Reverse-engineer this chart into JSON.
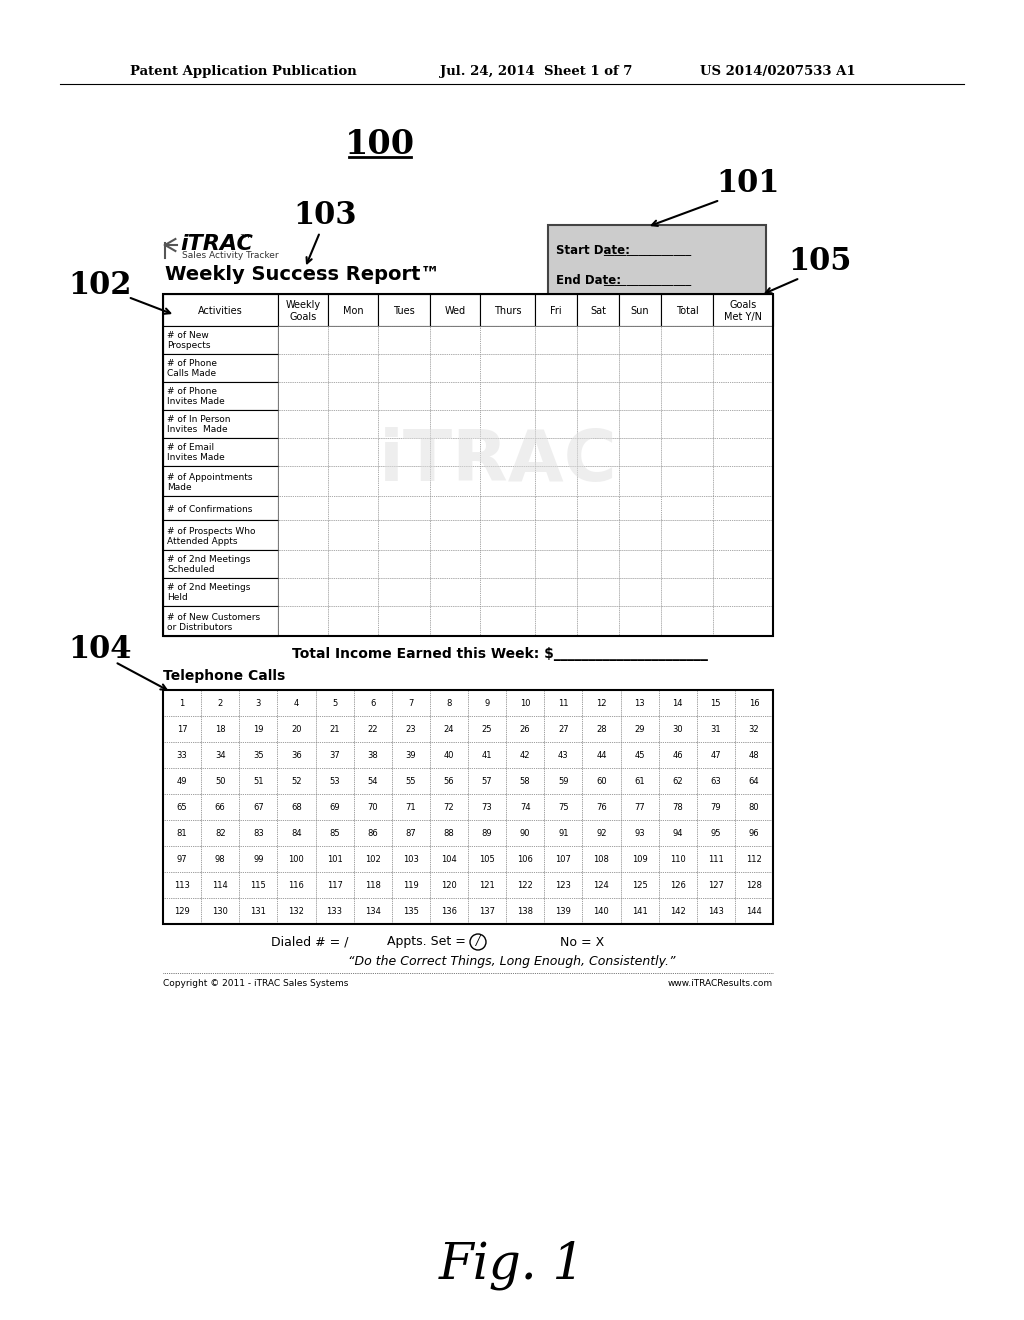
{
  "patent_header_left": "Patent Application Publication",
  "patent_header_mid": "Jul. 24, 2014  Sheet 1 of 7",
  "patent_header_right": "US 2014/0207533 A1",
  "main_label": "100",
  "label_101": "101",
  "label_102": "102",
  "label_103": "103",
  "label_104": "104",
  "label_105": "105",
  "itrac_title": "iTRAC",
  "itrac_tm": "™",
  "itrac_subtitle": "Sales Activity Tracker",
  "report_title": "Weekly Success Report™",
  "start_date_label": "Start Date:",
  "start_date_line": "_______________",
  "end_date_label": "End Date:",
  "end_date_line": "_______________",
  "table_headers": [
    "Activities",
    "Weekly\nGoals",
    "Mon",
    "Tues",
    "Wed",
    "Thurs",
    "Fri",
    "Sat",
    "Sun",
    "Total",
    "Goals\nMet Y/N"
  ],
  "activities": [
    "# of New\nProspects",
    "# of Phone\nCalls Made",
    "# of Phone\nInvites Made",
    "# of In Person\nInvites  Made",
    "# of Email\nInvites Made",
    "# of Appointments\nMade",
    "# of Confirmations",
    "# of Prospects Who\nAttended Appts",
    "# of 2nd Meetings\nScheduled",
    "# of 2nd Meetings\nHeld",
    "# of New Customers\nor Distributors"
  ],
  "total_income_text": "Total Income Earned this Week: $",
  "telephone_calls_label": "Telephone Calls",
  "phone_numbers": [
    [
      1,
      2,
      3,
      4,
      5,
      6,
      7,
      8,
      9,
      10,
      11,
      12,
      13,
      14,
      15,
      16
    ],
    [
      17,
      18,
      19,
      20,
      21,
      22,
      23,
      24,
      25,
      26,
      27,
      28,
      29,
      30,
      31,
      32
    ],
    [
      33,
      34,
      35,
      36,
      37,
      38,
      39,
      40,
      41,
      42,
      43,
      44,
      45,
      46,
      47,
      48
    ],
    [
      49,
      50,
      51,
      52,
      53,
      54,
      55,
      56,
      57,
      58,
      59,
      60,
      61,
      62,
      63,
      64
    ],
    [
      65,
      66,
      67,
      68,
      69,
      70,
      71,
      72,
      73,
      74,
      75,
      76,
      77,
      78,
      79,
      80
    ],
    [
      81,
      82,
      83,
      84,
      85,
      86,
      87,
      88,
      89,
      90,
      91,
      92,
      93,
      94,
      95,
      96
    ],
    [
      97,
      98,
      99,
      100,
      101,
      102,
      103,
      104,
      105,
      106,
      107,
      108,
      109,
      110,
      111,
      112
    ],
    [
      113,
      114,
      115,
      116,
      117,
      118,
      119,
      120,
      121,
      122,
      123,
      124,
      125,
      126,
      127,
      128
    ],
    [
      129,
      130,
      131,
      132,
      133,
      134,
      135,
      136,
      137,
      138,
      139,
      140,
      141,
      142,
      143,
      144
    ]
  ],
  "legend_dialed": "Dialed # = /",
  "legend_appts": "Appts. Set = ",
  "legend_no": "No = X",
  "quote_text": "“Do the Correct Things, Long Enough, Consistently.”",
  "copyright_left": "Copyright © 2011 - iTRAC Sales Systems",
  "copyright_right": "www.iTRACResults.com",
  "fig_label": "Fig. 1",
  "bg_color": "#ffffff",
  "date_box_fill": "#cccccc"
}
